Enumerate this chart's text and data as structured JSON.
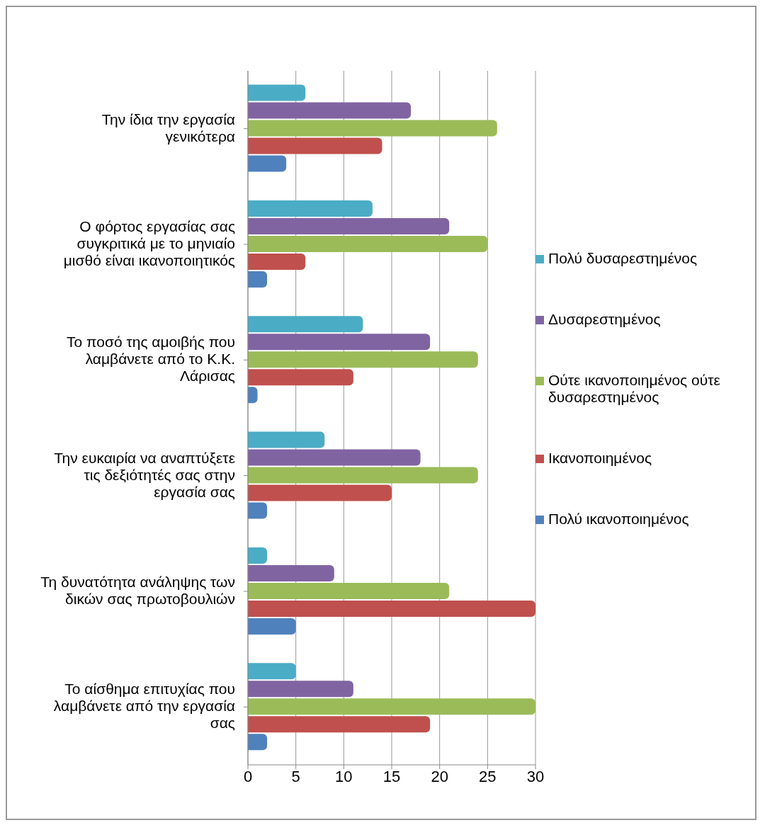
{
  "chart_data": {
    "type": "bar",
    "orientation": "horizontal",
    "categories": [
      "Την ίδια την εργασία γενικότερα",
      "Ο φόρτος εργασίας σας συγκριτικά με το μηνιαίο μισθό είναι ικανοποιητικός",
      "Το ποσό της αμοιβής που λαμβάνετε από το Κ.Κ. Λάρισας",
      "Την ευκαιρία να αναπτύξετε τις δεξιότητές σας στην εργασία σας",
      "Τη δυνατότητα ανάληψης των δικών σας πρωτοβουλιών",
      "Το αίσθημα επιτυχίας που λαμβάνετε από την εργασία σας"
    ],
    "series": [
      {
        "name": "Πολύ δυσαρεστημένος",
        "color": "#4bacc6",
        "values": [
          6,
          13,
          12,
          8,
          2,
          5
        ]
      },
      {
        "name": "Δυσαρεστημένος",
        "color": "#8064a2",
        "values": [
          17,
          21,
          19,
          18,
          9,
          11
        ]
      },
      {
        "name": "Ούτε ικανοποιημένος ούτε δυσαρεστημένος",
        "color": "#9bbb59",
        "values": [
          26,
          25,
          24,
          24,
          21,
          30
        ]
      },
      {
        "name": "Ικανοποιημένος",
        "color": "#c0504d",
        "values": [
          14,
          6,
          11,
          15,
          30,
          19
        ]
      },
      {
        "name": "Πολύ ικανοποιημένος",
        "color": "#4f81bd",
        "values": [
          4,
          2,
          1,
          2,
          5,
          2
        ]
      }
    ],
    "xlim": [
      0,
      30
    ],
    "xticks": [
      0,
      5,
      10,
      15,
      20,
      25,
      30
    ],
    "grid": "x",
    "legend": "right"
  }
}
